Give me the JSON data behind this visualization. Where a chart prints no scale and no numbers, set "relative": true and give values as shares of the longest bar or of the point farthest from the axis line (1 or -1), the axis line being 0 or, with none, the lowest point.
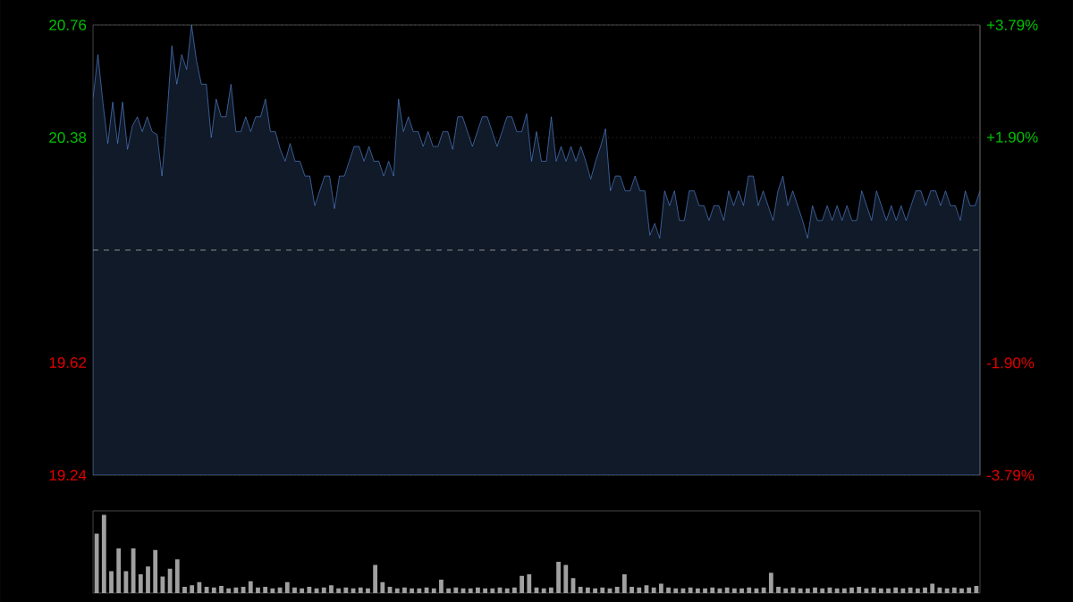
{
  "chart_data": [
    {
      "type": "area",
      "categories": [
        null,
        null,
        null,
        null,
        null,
        null,
        null,
        null,
        null,
        null,
        null,
        null,
        null,
        null,
        null,
        null,
        null,
        null,
        null,
        null,
        null,
        null,
        null,
        null,
        null,
        null,
        null,
        null,
        null,
        null,
        null,
        null,
        null,
        null,
        null,
        null,
        null,
        null,
        null,
        null,
        null,
        null,
        null,
        null,
        null,
        null,
        null,
        null,
        null,
        null,
        null,
        null,
        null,
        null,
        null,
        null,
        null,
        null,
        null,
        null,
        null,
        null,
        null,
        null,
        null,
        null,
        null,
        null,
        null,
        null,
        null,
        null,
        null,
        null,
        null,
        null,
        null,
        null,
        null,
        null,
        null,
        null,
        null,
        null,
        null,
        null,
        null,
        null,
        null,
        null,
        null,
        null,
        null,
        null,
        null,
        null,
        null,
        null,
        null,
        null,
        null,
        null,
        null,
        null,
        null,
        null,
        null,
        null,
        null,
        null,
        null,
        null,
        null,
        null,
        null,
        null,
        null,
        null,
        null,
        null,
        null,
        null,
        null,
        null,
        null,
        null,
        null,
        null,
        null,
        null,
        null,
        null,
        null,
        null,
        null,
        null,
        null,
        null,
        null,
        null,
        null,
        null,
        null,
        null,
        null,
        null,
        null,
        null,
        null,
        null,
        null,
        null,
        null,
        null,
        null,
        null,
        null,
        null,
        null,
        null,
        null,
        null,
        null,
        null,
        null,
        null,
        null,
        null,
        null,
        null,
        null,
        null,
        null,
        null,
        null,
        null,
        null,
        null,
        null,
        null,
        null
      ],
      "ylim": [
        19.24,
        20.76
      ],
      "yticks": [
        20.76,
        20.38,
        19.62,
        19.24
      ],
      "y2lim": [
        -3.79,
        3.79
      ],
      "y2ticks": [
        {
          "value": 3.79,
          "label": "+3.79%"
        },
        {
          "value": 1.9,
          "label": "+1.90%"
        },
        {
          "value": -1.9,
          "label": "-1.90%"
        },
        {
          "value": -3.79,
          "label": "-3.79%"
        }
      ],
      "grid": "y",
      "ref_lines": [
        {
          "axis": "y",
          "value": 20.0,
          "line_style": "dashed",
          "color": "#8a8a8a"
        }
      ],
      "series": [
        {
          "color": "#5b8ee6",
          "values": [
            20.51,
            20.66,
            20.5,
            20.36,
            20.5,
            20.36,
            20.5,
            20.34,
            20.42,
            20.45,
            20.4,
            20.45,
            20.4,
            20.39,
            20.25,
            20.45,
            20.69,
            20.56,
            20.66,
            20.61,
            20.76,
            20.64,
            20.56,
            20.56,
            20.38,
            20.51,
            20.45,
            20.45,
            20.56,
            20.4,
            20.4,
            20.45,
            20.4,
            20.45,
            20.45,
            20.51,
            20.4,
            20.4,
            20.34,
            20.3,
            20.36,
            20.3,
            20.3,
            20.25,
            20.25,
            20.15,
            20.2,
            20.25,
            20.25,
            20.14,
            20.25,
            20.25,
            20.3,
            20.35,
            20.35,
            20.3,
            20.35,
            20.3,
            20.3,
            20.25,
            20.3,
            20.25,
            20.51,
            20.4,
            20.45,
            20.4,
            20.4,
            20.35,
            20.4,
            20.35,
            20.35,
            20.4,
            20.4,
            20.34,
            20.45,
            20.45,
            20.4,
            20.35,
            20.4,
            20.45,
            20.45,
            20.4,
            20.35,
            20.4,
            20.45,
            20.45,
            20.4,
            20.4,
            20.46,
            20.3,
            20.4,
            20.3,
            20.3,
            20.45,
            20.3,
            20.35,
            20.3,
            20.35,
            20.3,
            20.35,
            20.3,
            20.24,
            20.3,
            20.35,
            20.41,
            20.2,
            20.25,
            20.25,
            20.2,
            20.2,
            20.25,
            20.2,
            20.2,
            20.05,
            20.09,
            20.04,
            20.2,
            20.15,
            20.2,
            20.1,
            20.1,
            20.2,
            20.2,
            20.15,
            20.15,
            20.1,
            20.15,
            20.15,
            20.1,
            20.2,
            20.15,
            20.2,
            20.15,
            20.25,
            20.25,
            20.15,
            20.2,
            20.15,
            20.1,
            20.2,
            20.25,
            20.15,
            20.2,
            20.15,
            20.1,
            20.04,
            20.15,
            20.1,
            20.1,
            20.15,
            20.1,
            20.15,
            20.1,
            20.15,
            20.1,
            20.1,
            20.2,
            20.15,
            20.1,
            20.2,
            20.15,
            20.1,
            20.15,
            20.1,
            20.15,
            20.1,
            20.15,
            20.2,
            20.2,
            20.15,
            20.2,
            20.2,
            20.15,
            20.2,
            20.15,
            20.15,
            20.1,
            20.2,
            20.15,
            20.15,
            20.2
          ]
        }
      ]
    },
    {
      "type": "bar",
      "relative": true,
      "categories": [
        null,
        null,
        null,
        null,
        null,
        null,
        null,
        null,
        null,
        null,
        null,
        null,
        null,
        null,
        null,
        null,
        null,
        null,
        null,
        null,
        null,
        null,
        null,
        null,
        null,
        null,
        null,
        null,
        null,
        null,
        null,
        null,
        null,
        null,
        null,
        null,
        null,
        null,
        null,
        null,
        null,
        null,
        null,
        null,
        null,
        null,
        null,
        null,
        null,
        null,
        null,
        null,
        null,
        null,
        null,
        null,
        null,
        null,
        null,
        null,
        null,
        null,
        null,
        null,
        null,
        null,
        null,
        null,
        null,
        null,
        null,
        null,
        null,
        null,
        null,
        null,
        null,
        null,
        null,
        null,
        null,
        null,
        null,
        null,
        null,
        null,
        null,
        null,
        null,
        null,
        null,
        null,
        null,
        null,
        null,
        null,
        null,
        null,
        null,
        null,
        null,
        null,
        null,
        null,
        null,
        null,
        null,
        null,
        null,
        null,
        null,
        null,
        null,
        null,
        null,
        null,
        null,
        null,
        null,
        null,
        null
      ],
      "series": [
        {
          "color": "#a0a0a0",
          "values": [
            0.76,
            1.0,
            0.28,
            0.57,
            0.28,
            0.57,
            0.24,
            0.34,
            0.55,
            0.21,
            0.31,
            0.43,
            0.08,
            0.1,
            0.14,
            0.08,
            0.07,
            0.09,
            0.06,
            0.07,
            0.08,
            0.15,
            0.07,
            0.08,
            0.06,
            0.07,
            0.14,
            0.07,
            0.06,
            0.08,
            0.06,
            0.07,
            0.1,
            0.06,
            0.07,
            0.06,
            0.07,
            0.06,
            0.36,
            0.14,
            0.08,
            0.06,
            0.07,
            0.06,
            0.06,
            0.07,
            0.06,
            0.17,
            0.06,
            0.07,
            0.06,
            0.06,
            0.07,
            0.06,
            0.06,
            0.07,
            0.06,
            0.07,
            0.22,
            0.24,
            0.07,
            0.06,
            0.07,
            0.4,
            0.36,
            0.19,
            0.08,
            0.07,
            0.06,
            0.07,
            0.06,
            0.08,
            0.24,
            0.08,
            0.07,
            0.1,
            0.07,
            0.12,
            0.07,
            0.06,
            0.06,
            0.07,
            0.06,
            0.06,
            0.07,
            0.06,
            0.07,
            0.06,
            0.06,
            0.07,
            0.06,
            0.07,
            0.26,
            0.08,
            0.06,
            0.07,
            0.06,
            0.06,
            0.07,
            0.06,
            0.07,
            0.06,
            0.06,
            0.07,
            0.08,
            0.06,
            0.07,
            0.06,
            0.06,
            0.07,
            0.06,
            0.07,
            0.06,
            0.07,
            0.12,
            0.07,
            0.06,
            0.07,
            0.06,
            0.07,
            0.09
          ]
        }
      ]
    }
  ]
}
